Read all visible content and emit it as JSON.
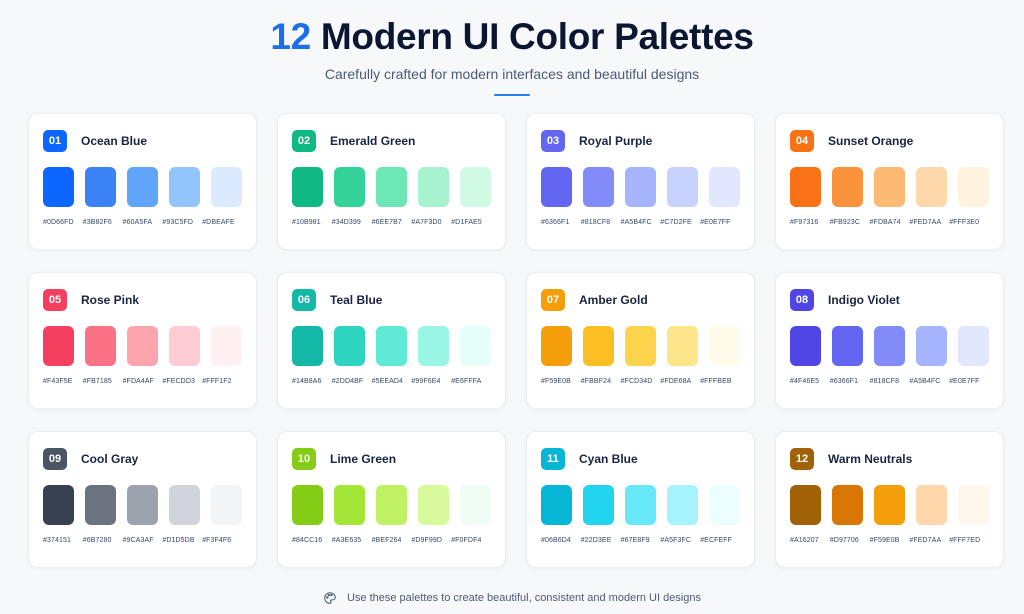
{
  "header": {
    "title_number": "12",
    "title_text": "Modern UI Color Palettes",
    "subtitle": "Carefully crafted for modern interfaces and beautiful designs"
  },
  "palettes": [
    {
      "number": "01",
      "name": "Ocean Blue",
      "badge_color": "#0D66FD",
      "colors": [
        "#0D66FD",
        "#3B82F6",
        "#60A5FA",
        "#93C5FD",
        "#DBEAFE"
      ]
    },
    {
      "number": "02",
      "name": "Emerald Green",
      "badge_color": "#10B981",
      "colors": [
        "#10B981",
        "#34D399",
        "#6EE7B7",
        "#A7F3D0",
        "#D1FAE5"
      ]
    },
    {
      "number": "03",
      "name": "Royal Purple",
      "badge_color": "#6366F1",
      "colors": [
        "#6366F1",
        "#818CF8",
        "#A5B4FC",
        "#C7D2FE",
        "#E0E7FF"
      ]
    },
    {
      "number": "04",
      "name": "Sunset Orange",
      "badge_color": "#F97316",
      "colors": [
        "#F97316",
        "#FB923C",
        "#FDBA74",
        "#FED7AA",
        "#FFF3E0"
      ]
    },
    {
      "number": "05",
      "name": "Rose Pink",
      "badge_color": "#F43F5E",
      "colors": [
        "#F43F5E",
        "#FB7185",
        "#FDA4AF",
        "#FECDD3",
        "#FFF1F2"
      ]
    },
    {
      "number": "06",
      "name": "Teal Blue",
      "badge_color": "#14B8A6",
      "colors": [
        "#14B8A6",
        "#2DD4BF",
        "#5EEAD4",
        "#99F6E4",
        "#E6FFFA"
      ]
    },
    {
      "number": "07",
      "name": "Amber Gold",
      "badge_color": "#F59E0B",
      "colors": [
        "#F59E0B",
        "#FBBF24",
        "#FCD34D",
        "#FDE68A",
        "#FFFBEB"
      ]
    },
    {
      "number": "08",
      "name": "Indigo Violet",
      "badge_color": "#4F46E5",
      "colors": [
        "#4F46E5",
        "#6366F1",
        "#818CF8",
        "#A5B4FC",
        "#E0E7FF"
      ]
    },
    {
      "number": "09",
      "name": "Cool Gray",
      "badge_color": "#4B5563",
      "colors": [
        "#374151",
        "#6B7280",
        "#9CA3AF",
        "#D1D5DB",
        "#F3F4F6"
      ]
    },
    {
      "number": "10",
      "name": "Lime Green",
      "badge_color": "#84CC16",
      "colors": [
        "#84CC16",
        "#A3E635",
        "#BEF264",
        "#D9F99D",
        "#F0FDF4"
      ]
    },
    {
      "number": "11",
      "name": "Cyan Blue",
      "badge_color": "#06B6D4",
      "colors": [
        "#06B6D4",
        "#22D3EE",
        "#67E8F9",
        "#A5F3FC",
        "#ECFEFF"
      ]
    },
    {
      "number": "12",
      "name": "Warm Neutrals",
      "badge_color": "#A16207",
      "colors": [
        "#A16207",
        "#D97706",
        "#F59E0B",
        "#FED7AA",
        "#FFF7ED"
      ]
    }
  ],
  "footer": {
    "icon": "palette-icon",
    "text": "Use these palettes to create beautiful, consistent and modern UI designs"
  },
  "accent": "#1D6FE8"
}
